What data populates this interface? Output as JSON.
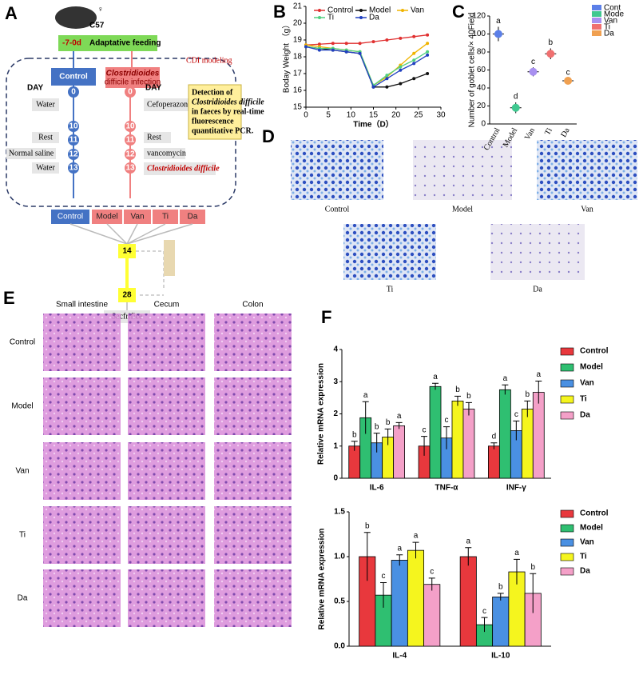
{
  "panel_labels": [
    "A",
    "B",
    "C",
    "D",
    "E",
    "F"
  ],
  "diagram": {
    "sex": "♀",
    "strain": "C57",
    "feeding_days": "-7-0d",
    "feeding": "Adaptative feeding",
    "modeling": "CDI modeling",
    "control_box": "Control",
    "cdi_box": [
      "Clostridioides",
      "difficile infection"
    ],
    "day_left": "DAY",
    "day_right": "DAY",
    "days": [
      "0",
      "10",
      "11",
      "12",
      "13"
    ],
    "left_steps": [
      "Water",
      "Rest",
      "Normal saline",
      "Water"
    ],
    "right_steps": [
      "Cefoperazone",
      "Rest",
      "vancomycin",
      "Clostridioides difficile"
    ],
    "pcr_note": [
      "Detection of",
      "Clostridioides difficile",
      "in faeces by real-time",
      "fluorescence",
      "quantitative PCR."
    ],
    "groups": [
      "Control",
      "Model",
      "Van",
      "Ti",
      "Da"
    ],
    "day14": "14",
    "day28": "28",
    "end": "Sacfrifice"
  },
  "micrographs": {
    "goblet_labels": [
      "Control",
      "Model",
      "Van",
      "Ti",
      "Da"
    ],
    "he_columns": [
      "Small intestine",
      "Cecum",
      "Colon"
    ],
    "he_rows": [
      "Control",
      "Model",
      "Van",
      "Ti",
      "Da"
    ]
  },
  "chart_data": [
    {
      "type": "line",
      "xlabel": "Time（D）",
      "ylabel": "Boday Weight （g）",
      "x": [
        0,
        3,
        6,
        9,
        12,
        15,
        18,
        21,
        24,
        27
      ],
      "xlim": [
        0,
        30
      ],
      "xticks": [
        0,
        5,
        10,
        15,
        20,
        25,
        30
      ],
      "ylim": [
        15,
        21
      ],
      "yticks": [
        15,
        16,
        17,
        18,
        19,
        20,
        21
      ],
      "series": [
        {
          "name": "Control",
          "color": "#e03030",
          "values": [
            18.7,
            18.75,
            18.8,
            18.8,
            18.8,
            18.9,
            19.0,
            19.1,
            19.2,
            19.3
          ]
        },
        {
          "name": "Model",
          "color": "#111111",
          "values": [
            18.6,
            18.5,
            18.4,
            18.3,
            18.2,
            16.2,
            16.2,
            16.4,
            16.7,
            17.0
          ]
        },
        {
          "name": "Van",
          "color": "#f0b400",
          "values": [
            18.7,
            18.6,
            18.5,
            18.4,
            18.3,
            16.3,
            16.8,
            17.5,
            18.2,
            18.8
          ]
        },
        {
          "name": "Ti",
          "color": "#50d080",
          "values": [
            18.6,
            18.5,
            18.5,
            18.4,
            18.3,
            16.3,
            16.9,
            17.4,
            17.8,
            18.3
          ]
        },
        {
          "name": "Da",
          "color": "#2040c0",
          "values": [
            18.6,
            18.4,
            18.4,
            18.3,
            18.2,
            16.2,
            16.7,
            17.2,
            17.6,
            18.1
          ]
        }
      ]
    },
    {
      "type": "dot",
      "ylabel": "Number of goblet cells/× 40Field",
      "categories": [
        "Control",
        "Model",
        "Van",
        "Ti",
        "Da"
      ],
      "values": [
        100,
        18,
        58,
        78,
        48
      ],
      "errors": [
        8,
        6,
        5,
        6,
        3
      ],
      "letters": [
        "a",
        "d",
        "c",
        "b",
        "c"
      ],
      "colors": [
        "#5b7fe8",
        "#40c890",
        "#a890f0",
        "#f07070",
        "#f0a050"
      ],
      "legend": [
        "Cont",
        "Mode",
        "Van",
        "Ti",
        "Da"
      ],
      "ylim": [
        0,
        120
      ],
      "yticks": [
        0,
        20,
        40,
        60,
        80,
        100,
        120
      ]
    },
    {
      "type": "bar",
      "ylabel": "Relative mRNA expression",
      "categories": [
        "IL-6",
        "TNF-α",
        "INF-γ"
      ],
      "ylim": [
        0,
        4
      ],
      "yticks": [
        0,
        1,
        2,
        3,
        4
      ],
      "series": [
        {
          "name": "Control",
          "color": "#e8383d",
          "values": [
            1,
            1,
            1
          ],
          "errors": [
            0.15,
            0.3,
            0.1
          ],
          "letters": [
            "b",
            "c",
            "d"
          ]
        },
        {
          "name": "Model",
          "color": "#2fbf71",
          "values": [
            1.88,
            2.85,
            2.75
          ],
          "errors": [
            0.5,
            0.1,
            0.15
          ],
          "letters": [
            "a",
            "a",
            "a"
          ]
        },
        {
          "name": "Van",
          "color": "#4a90e2",
          "values": [
            1.1,
            1.25,
            1.48
          ],
          "errors": [
            0.3,
            0.35,
            0.3
          ],
          "letters": [
            "b",
            "c",
            "c"
          ]
        },
        {
          "name": "Ti",
          "color": "#f5f51e",
          "values": [
            1.28,
            2.4,
            2.15
          ],
          "errors": [
            0.25,
            0.15,
            0.25
          ],
          "letters": [
            "b",
            "b",
            "b"
          ]
        },
        {
          "name": "Da",
          "color": "#f4a0c8",
          "values": [
            1.63,
            2.15,
            2.67
          ],
          "errors": [
            0.1,
            0.2,
            0.35
          ],
          "letters": [
            "a",
            "b",
            "a"
          ]
        }
      ]
    },
    {
      "type": "bar",
      "ylabel": "Relative mRNA expression",
      "categories": [
        "IL-4",
        "IL-10"
      ],
      "ylim": [
        0,
        1.5
      ],
      "yticks": [
        {
          "value": 0,
          "label": "0.0"
        },
        0.5,
        {
          "value": 1,
          "label": "1.0"
        },
        1.5
      ],
      "series": [
        {
          "name": "Control",
          "color": "#e8383d",
          "values": [
            1.0,
            1.0
          ],
          "errors": [
            0.27,
            0.1
          ],
          "letters": [
            "b",
            "a"
          ]
        },
        {
          "name": "Model",
          "color": "#2fbf71",
          "values": [
            0.57,
            0.24
          ],
          "errors": [
            0.14,
            0.08
          ],
          "letters": [
            "c",
            "c"
          ]
        },
        {
          "name": "Van",
          "color": "#4a90e2",
          "values": [
            0.96,
            0.55
          ],
          "errors": [
            0.06,
            0.04
          ],
          "letters": [
            "a",
            "b"
          ]
        },
        {
          "name": "Ti",
          "color": "#f5f51e",
          "values": [
            1.07,
            0.83
          ],
          "errors": [
            0.09,
            0.14
          ],
          "letters": [
            "a",
            "a"
          ]
        },
        {
          "name": "Da",
          "color": "#f4a0c8",
          "values": [
            0.69,
            0.59
          ],
          "errors": [
            0.07,
            0.22
          ],
          "letters": [
            "c",
            "b"
          ]
        }
      ]
    }
  ]
}
